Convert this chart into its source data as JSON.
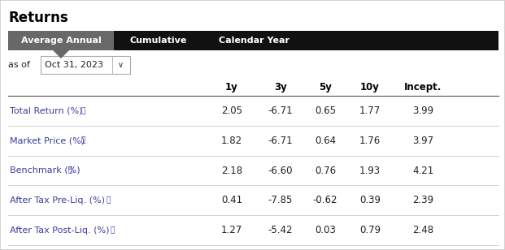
{
  "title": "Returns",
  "tab_labels": [
    "Average Annual",
    "Cumulative",
    "Calendar Year"
  ],
  "as_of_label": "as of",
  "as_of_date": "Oct 31, 2023",
  "col_headers": [
    "1y",
    "3y",
    "5y",
    "10y",
    "Incept."
  ],
  "rows": [
    {
      "label": "Total Return (%)",
      "values": [
        "2.05",
        "-6.71",
        "0.65",
        "1.77",
        "3.99"
      ]
    },
    {
      "label": "Market Price (%)",
      "values": [
        "1.82",
        "-6.71",
        "0.64",
        "1.76",
        "3.97"
      ]
    },
    {
      "label": "Benchmark (%)",
      "values": [
        "2.18",
        "-6.60",
        "0.76",
        "1.93",
        "4.21"
      ]
    },
    {
      "label": "After Tax Pre-Liq. (%)",
      "values": [
        "0.41",
        "-7.85",
        "-0.62",
        "0.39",
        "2.39"
      ]
    },
    {
      "label": "After Tax Post-Liq. (%)",
      "values": [
        "1.27",
        "-5.42",
        "0.03",
        "0.79",
        "2.48"
      ]
    }
  ],
  "tab_bg_active": "#686868",
  "tab_bg_inactive": "#111111",
  "tab_text_active": "#ffffff",
  "tab_text_inactive": "#ffffff",
  "bg_color": "#ffffff",
  "border_color": "#cccccc",
  "title_color": "#000000",
  "as_of_text_color": "#222222",
  "date_box_color": "#ffffff",
  "date_box_border": "#aaaaaa",
  "col_header_color": "#000000",
  "row_label_color": "#3c3c9e",
  "info_icon_color": "#3030aa",
  "value_color": "#222222",
  "divider_color": "#888888",
  "row_divider_color": "#cccccc"
}
